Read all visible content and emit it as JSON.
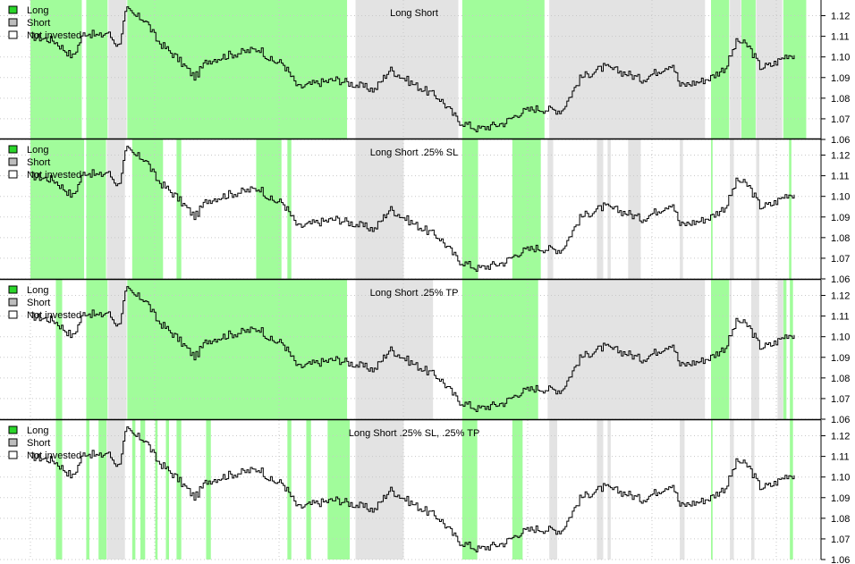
{
  "chart_data": [
    {
      "type": "line",
      "title": "Long Short",
      "legend": [
        "Long",
        "Short",
        "Not invested"
      ],
      "legend_position": "top-left",
      "ylim": [
        1.06,
        1.125
      ],
      "yticks": [
        1.06,
        1.07,
        1.08,
        1.09,
        1.1,
        1.11,
        1.12
      ],
      "ytick_labels": [
        "1.06",
        "1.07",
        "1.08",
        "1.09",
        "1.10",
        "1.11",
        "1.12"
      ],
      "grid": true,
      "long_periods": [
        [
          0.0,
          0.065
        ],
        [
          0.068,
          0.095
        ],
        [
          0.118,
          0.396
        ],
        [
          0.526,
          0.63
        ],
        [
          0.829,
          0.852
        ],
        [
          0.866,
          0.884
        ],
        [
          0.917,
          0.946
        ]
      ],
      "short_periods": [
        [
          0.095,
          0.118
        ],
        [
          0.396,
          0.526
        ],
        [
          0.632,
          0.829
        ],
        [
          0.852,
          0.866
        ],
        [
          0.884,
          0.917
        ]
      ]
    },
    {
      "type": "line",
      "title": "Long Short .25% SL",
      "legend": [
        "Long",
        "Short",
        "Not invested"
      ],
      "legend_position": "top-left",
      "ylim": [
        1.06,
        1.125
      ],
      "yticks": [
        1.06,
        1.07,
        1.08,
        1.09,
        1.1,
        1.11,
        1.12
      ],
      "ytick_labels": [
        "1.06",
        "1.07",
        "1.08",
        "1.09",
        "1.10",
        "1.11",
        "1.12"
      ],
      "grid": true,
      "long_periods": [
        [
          0.0,
          0.068
        ],
        [
          0.068,
          0.093
        ],
        [
          0.124,
          0.163
        ],
        [
          0.178,
          0.184
        ],
        [
          0.275,
          0.307
        ],
        [
          0.313,
          0.318
        ],
        [
          0.526,
          0.546
        ],
        [
          0.587,
          0.623
        ],
        [
          0.829,
          0.831
        ],
        [
          0.924,
          0.927
        ]
      ],
      "short_periods": [
        [
          0.093,
          0.116
        ],
        [
          0.396,
          0.457
        ],
        [
          0.63,
          0.637
        ],
        [
          0.69,
          0.698
        ],
        [
          0.703,
          0.707
        ],
        [
          0.728,
          0.744
        ],
        [
          0.791,
          0.795
        ],
        [
          0.852,
          0.857
        ],
        [
          0.884,
          0.888
        ]
      ]
    },
    {
      "type": "line",
      "title": "Long Short .25% TP",
      "legend": [
        "Long",
        "Short",
        "Not invested"
      ],
      "legend_position": "top-left",
      "ylim": [
        1.06,
        1.125
      ],
      "yticks": [
        1.06,
        1.07,
        1.08,
        1.09,
        1.1,
        1.11,
        1.12
      ],
      "ytick_labels": [
        "1.06",
        "1.07",
        "1.08",
        "1.09",
        "1.10",
        "1.11",
        "1.12"
      ],
      "grid": true,
      "long_periods": [
        [
          0.031,
          0.039
        ],
        [
          0.068,
          0.095
        ],
        [
          0.118,
          0.396
        ],
        [
          0.526,
          0.622
        ],
        [
          0.829,
          0.852
        ],
        [
          0.917,
          0.921
        ],
        [
          0.925,
          0.929
        ]
      ],
      "short_periods": [
        [
          0.095,
          0.118
        ],
        [
          0.396,
          0.494
        ],
        [
          0.63,
          0.829
        ],
        [
          0.852,
          0.854
        ],
        [
          0.878,
          0.888
        ],
        [
          0.91,
          0.917
        ]
      ]
    },
    {
      "type": "line",
      "title": "Long Short .25% SL, .25% TP",
      "legend": [
        "Long",
        "Short",
        "Not invested"
      ],
      "legend_position": "top-left",
      "ylim": [
        1.06,
        1.125
      ],
      "yticks": [
        1.06,
        1.07,
        1.08,
        1.09,
        1.1,
        1.11,
        1.12
      ],
      "ytick_labels": [
        "1.06",
        "1.07",
        "1.08",
        "1.09",
        "1.10",
        "1.11",
        "1.12"
      ],
      "grid": true,
      "long_periods": [
        [
          0.031,
          0.039
        ],
        [
          0.068,
          0.072
        ],
        [
          0.083,
          0.093
        ],
        [
          0.124,
          0.128
        ],
        [
          0.134,
          0.14
        ],
        [
          0.152,
          0.155
        ],
        [
          0.165,
          0.169
        ],
        [
          0.178,
          0.184
        ],
        [
          0.214,
          0.22
        ],
        [
          0.313,
          0.318
        ],
        [
          0.336,
          0.342
        ],
        [
          0.362,
          0.39
        ],
        [
          0.526,
          0.545
        ],
        [
          0.587,
          0.6
        ],
        [
          0.829,
          0.831
        ],
        [
          0.925,
          0.929
        ]
      ],
      "short_periods": [
        [
          0.093,
          0.116
        ],
        [
          0.396,
          0.457
        ],
        [
          0.632,
          0.642
        ],
        [
          0.69,
          0.698
        ],
        [
          0.703,
          0.707
        ],
        [
          0.791,
          0.797
        ],
        [
          0.852,
          0.857
        ],
        [
          0.878,
          0.882
        ]
      ]
    }
  ],
  "colors": {
    "long": "#a1fc9b",
    "short": "#e3e3e3",
    "price": "#000000",
    "grid": "#c8c8c8",
    "legend_long": "#2ad52a",
    "legend_short": "#bdbdbd",
    "legend_none": "#ffffff"
  }
}
